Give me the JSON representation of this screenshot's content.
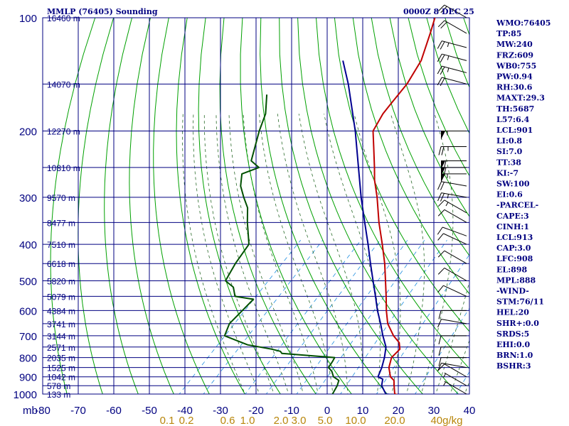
{
  "header": {
    "time": "0000Z  8 DEC 25"
  },
  "chart_data": {
    "type": "line",
    "title": "MMLP (76405) Sounding",
    "xlabel": "mb",
    "ylabel": "",
    "x_ticks": [
      "-80",
      "-70",
      "-60",
      "-50",
      "-40",
      "-30",
      "-20",
      "-10",
      "0",
      "10",
      "20",
      "30",
      "40"
    ],
    "xlim": [
      -80,
      40
    ],
    "pressure_ticks": [
      "100",
      "200",
      "300",
      "400",
      "500",
      "600",
      "700",
      "800",
      "900",
      "1000"
    ],
    "pressure_values": [
      100,
      200,
      300,
      400,
      500,
      600,
      700,
      800,
      900,
      1000
    ],
    "ylim": [
      1000,
      100
    ],
    "height_labels": [
      {
        "p": 100,
        "label": "16460 m"
      },
      {
        "p": 150,
        "label": "14070 m"
      },
      {
        "p": 200,
        "label": "12270 m"
      },
      {
        "p": 250,
        "label": "10810 m"
      },
      {
        "p": 300,
        "label": "9570 m"
      },
      {
        "p": 350,
        "label": "8477 m"
      },
      {
        "p": 400,
        "label": "7510 m"
      },
      {
        "p": 450,
        "label": "6618 m"
      },
      {
        "p": 500,
        "label": "5820 m"
      },
      {
        "p": 550,
        "label": "5079 m"
      },
      {
        "p": 600,
        "label": "4384 m"
      },
      {
        "p": 650,
        "label": "3741 m"
      },
      {
        "p": 700,
        "label": "3144 m"
      },
      {
        "p": 750,
        "label": "2571 m"
      },
      {
        "p": 800,
        "label": "2035 m"
      },
      {
        "p": 850,
        "label": "1525 m"
      },
      {
        "p": 900,
        "label": "1042 m"
      },
      {
        "p": 950,
        "label": "578 m"
      },
      {
        "p": 1000,
        "label": "133 m"
      }
    ],
    "mixing_ratio_ticks": [
      "0.1",
      "0.2",
      "0.6",
      "1.0",
      "2.0",
      "3.0",
      "5.0",
      "10.0",
      "20.0",
      "40g/kg"
    ],
    "mixing_ratio_values": [
      0.1,
      0.2,
      0.6,
      1.0,
      2.0,
      3.0,
      5.0,
      10.0,
      20.0,
      40.0
    ],
    "series": [
      {
        "name": "Temperature",
        "color": "#c00000",
        "points": [
          [
            1009,
            21.5
          ],
          [
            1000,
            19
          ],
          [
            950,
            16.5
          ],
          [
            920,
            15
          ],
          [
            900,
            13
          ],
          [
            850,
            10
          ],
          [
            800,
            8
          ],
          [
            760,
            8
          ],
          [
            730,
            6
          ],
          [
            700,
            2.5
          ],
          [
            650,
            -2.5
          ],
          [
            600,
            -6.5
          ],
          [
            550,
            -10.5
          ],
          [
            500,
            -15
          ],
          [
            450,
            -20
          ],
          [
            400,
            -26
          ],
          [
            350,
            -33
          ],
          [
            300,
            -40.5
          ],
          [
            270,
            -46
          ],
          [
            250,
            -49.5
          ],
          [
            220,
            -55.5
          ],
          [
            200,
            -60
          ],
          [
            180,
            -62
          ],
          [
            170,
            -62.5
          ],
          [
            150,
            -63.5
          ],
          [
            130,
            -66
          ],
          [
            110,
            -71
          ],
          [
            100,
            -74
          ]
        ]
      },
      {
        "name": "Dewpoint",
        "color": "#005000",
        "points": [
          [
            1009,
            2
          ],
          [
            1000,
            1.5
          ],
          [
            950,
            0.5
          ],
          [
            920,
            -0.5
          ],
          [
            900,
            -3
          ],
          [
            870,
            -5
          ],
          [
            850,
            -7
          ],
          [
            820,
            -7.5
          ],
          [
            800,
            -8
          ],
          [
            780,
            -24
          ],
          [
            770,
            -25
          ],
          [
            760,
            -28
          ],
          [
            740,
            -36
          ],
          [
            700,
            -45
          ],
          [
            650,
            -47
          ],
          [
            600,
            -47
          ],
          [
            560,
            -47
          ],
          [
            550,
            -53
          ],
          [
            520,
            -56
          ],
          [
            500,
            -60
          ],
          [
            450,
            -62
          ],
          [
            400,
            -63.5
          ],
          [
            350,
            -70
          ],
          [
            320,
            -74
          ],
          [
            300,
            -78
          ],
          [
            280,
            -82
          ],
          [
            260,
            -85
          ],
          [
            250,
            -82
          ],
          [
            240,
            -86
          ],
          [
            200,
            -92
          ],
          [
            180,
            -95
          ],
          [
            160,
            -100
          ]
        ]
      },
      {
        "name": "Parcel",
        "color": "#000090",
        "points": [
          [
            1009,
            21.5
          ],
          [
            1000,
            16.5
          ],
          [
            950,
            13
          ],
          [
            913,
            11.5
          ],
          [
            900,
            9.5
          ],
          [
            850,
            8
          ],
          [
            800,
            6
          ],
          [
            750,
            3.5
          ],
          [
            700,
            -0.5
          ],
          [
            650,
            -4.5
          ],
          [
            600,
            -9
          ],
          [
            550,
            -13.5
          ],
          [
            500,
            -18.5
          ],
          [
            450,
            -24
          ],
          [
            400,
            -30
          ],
          [
            350,
            -37
          ],
          [
            300,
            -45
          ],
          [
            250,
            -54
          ],
          [
            200,
            -65
          ],
          [
            150,
            -80
          ],
          [
            130,
            -88
          ]
        ]
      }
    ],
    "wind_barbs": [
      {
        "p": 100,
        "dir": 300,
        "kt": 20
      },
      {
        "p": 110,
        "dir": 300,
        "kt": 20
      },
      {
        "p": 120,
        "dir": 285,
        "kt": 25
      },
      {
        "p": 130,
        "dir": 285,
        "kt": 25
      },
      {
        "p": 140,
        "dir": 285,
        "kt": 25
      },
      {
        "p": 150,
        "dir": 285,
        "kt": 20
      },
      {
        "p": 200,
        "dir": 270,
        "kt": 55
      },
      {
        "p": 220,
        "dir": 270,
        "kt": 25
      },
      {
        "p": 240,
        "dir": 270,
        "kt": 60
      },
      {
        "p": 250,
        "dir": 270,
        "kt": 60
      },
      {
        "p": 260,
        "dir": 270,
        "kt": 55
      },
      {
        "p": 280,
        "dir": 280,
        "kt": 20
      },
      {
        "p": 300,
        "dir": 280,
        "kt": 25
      },
      {
        "p": 330,
        "dir": 300,
        "kt": 15
      },
      {
        "p": 350,
        "dir": 300,
        "kt": 10
      },
      {
        "p": 380,
        "dir": 290,
        "kt": 10
      },
      {
        "p": 400,
        "dir": 295,
        "kt": 10
      },
      {
        "p": 450,
        "dir": 300,
        "kt": 10
      },
      {
        "p": 500,
        "dir": 300,
        "kt": 10
      },
      {
        "p": 550,
        "dir": 295,
        "kt": 10
      },
      {
        "p": 600,
        "dir": 270,
        "kt": 10
      },
      {
        "p": 650,
        "dir": 280,
        "kt": 10
      },
      {
        "p": 700,
        "dir": 270,
        "kt": 10
      },
      {
        "p": 750,
        "dir": 270,
        "kt": 10
      },
      {
        "p": 800,
        "dir": 270,
        "kt": 10
      },
      {
        "p": 850,
        "dir": 280,
        "kt": 10
      },
      {
        "p": 900,
        "dir": 300,
        "kt": 10
      },
      {
        "p": 950,
        "dir": 300,
        "kt": 5
      },
      {
        "p": 1000,
        "dir": 300,
        "kt": 5
      }
    ]
  },
  "indices": [
    "WMO:76405",
    "TP:85",
    "MW:240",
    "FRZ:609",
    "WB0:755",
    "PW:0.94",
    "RH:30.6",
    "MAXT:29.3",
    "TH:5687",
    "L57:6.4",
    "LCL:901",
    "LI:0.8",
    "SI:7.0",
    "TT:38",
    "KI:-7",
    "SW:100",
    "EI:0.6",
    "-PARCEL-",
    "CAPE:3",
    "CINH:1",
    "LCL:913",
    "CAP:3.0",
    "LFC:908",
    "EL:898",
    "MPL:888",
    "-WIND-",
    "STM:76/11",
    "HEL:20",
    "SHR+:0.0",
    "SRDS:5",
    "EHI:0.0",
    "BRN:1.0",
    "BSHR:3"
  ],
  "colors": {
    "grid": "#000080",
    "dry_adiabat": "#00a000",
    "moist_adiabat": "#2a6b2a",
    "mixing_ratio": "#1e8ee0",
    "mixing_label": "#b8860b"
  }
}
